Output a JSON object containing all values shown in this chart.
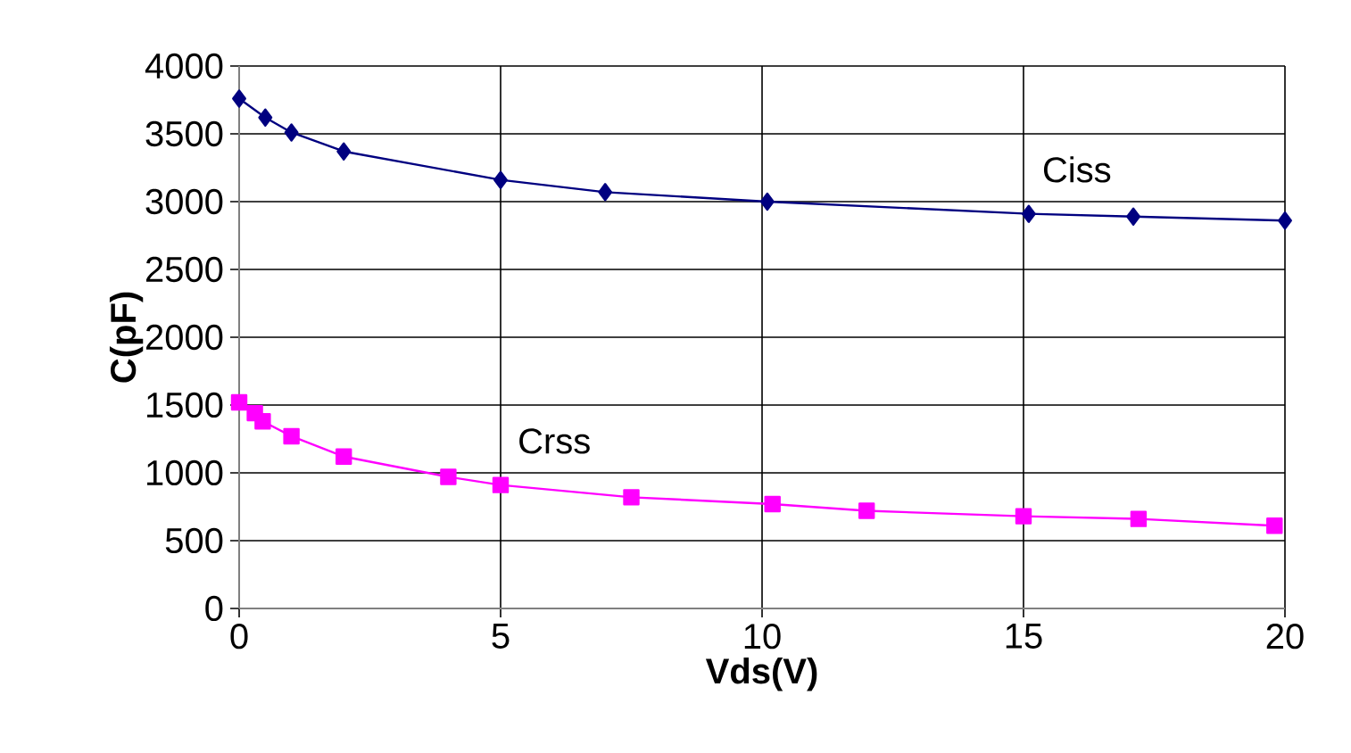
{
  "chart_data": {
    "type": "line",
    "xlabel": "Vds(V)",
    "ylabel": "C(pF)",
    "xlim": [
      0,
      20
    ],
    "xticks": [
      0,
      5,
      10,
      15,
      20
    ],
    "ylim": [
      0,
      4000
    ],
    "yticks": [
      0,
      500,
      1000,
      1500,
      2000,
      2500,
      3000,
      3500,
      4000
    ],
    "grid": true,
    "legend": false,
    "series": [
      {
        "name": "Ciss",
        "color": "#000080",
        "marker": "diamond",
        "x": [
          0,
          0.5,
          1,
          2,
          5,
          7,
          10.1,
          15.1,
          17.1,
          20
        ],
        "values": [
          3760,
          3620,
          3510,
          3370,
          3160,
          3070,
          3000,
          2910,
          2890,
          2860
        ]
      },
      {
        "name": "Crss",
        "color": "#ff00ff",
        "marker": "square",
        "x": [
          0,
          0.3,
          0.45,
          1,
          2,
          4,
          5,
          7.5,
          10.2,
          12,
          15,
          17.2,
          19.8
        ],
        "values": [
          1520,
          1440,
          1380,
          1270,
          1120,
          970,
          910,
          820,
          770,
          720,
          680,
          660,
          610
        ]
      }
    ]
  }
}
